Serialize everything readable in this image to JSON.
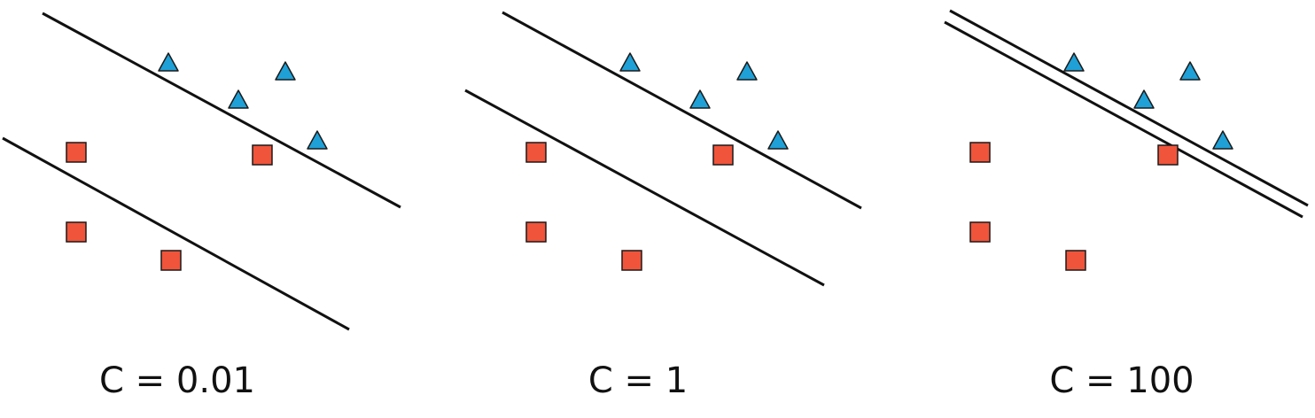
{
  "panels": [
    {
      "label": "C = 0.01",
      "class_a": [
        [
          190,
          70
        ],
        [
          322,
          80
        ],
        [
          269,
          112
        ],
        [
          358,
          158
        ]
      ],
      "class_b": [
        [
          86,
          172
        ],
        [
          296,
          175
        ],
        [
          86,
          262
        ],
        [
          193,
          294
        ]
      ],
      "lines": [
        [
          [
            48,
            15
          ],
          [
            452,
            234
          ]
        ],
        [
          [
            3,
            156
          ],
          [
            394,
            372
          ]
        ]
      ]
    },
    {
      "label": "C = 1",
      "class_a": [
        [
          711,
          70
        ],
        [
          843,
          80
        ],
        [
          790,
          112
        ],
        [
          878,
          158
        ]
      ],
      "class_b": [
        [
          605,
          172
        ],
        [
          816,
          175
        ],
        [
          605,
          262
        ],
        [
          713,
          294
        ]
      ],
      "lines": [
        [
          [
            567,
            14
          ],
          [
            972,
            235
          ]
        ],
        [
          [
            525,
            102
          ],
          [
            930,
            322
          ]
        ]
      ]
    },
    {
      "label": "C = 100",
      "class_a": [
        [
          1212,
          70
        ],
        [
          1343,
          80
        ],
        [
          1291,
          112
        ],
        [
          1380,
          158
        ]
      ],
      "class_b": [
        [
          1106,
          172
        ],
        [
          1318,
          175
        ],
        [
          1106,
          262
        ],
        [
          1214,
          294
        ]
      ],
      "lines": [
        [
          [
            1072,
            12
          ],
          [
            1476,
            232
          ]
        ],
        [
          [
            1066,
            25
          ],
          [
            1470,
            245
          ]
        ]
      ]
    }
  ],
  "colors": {
    "triangle_fill": "#1fa0d6",
    "square_fill": "#f0543a",
    "outline": "#1a1a1a",
    "line": "#111111"
  }
}
